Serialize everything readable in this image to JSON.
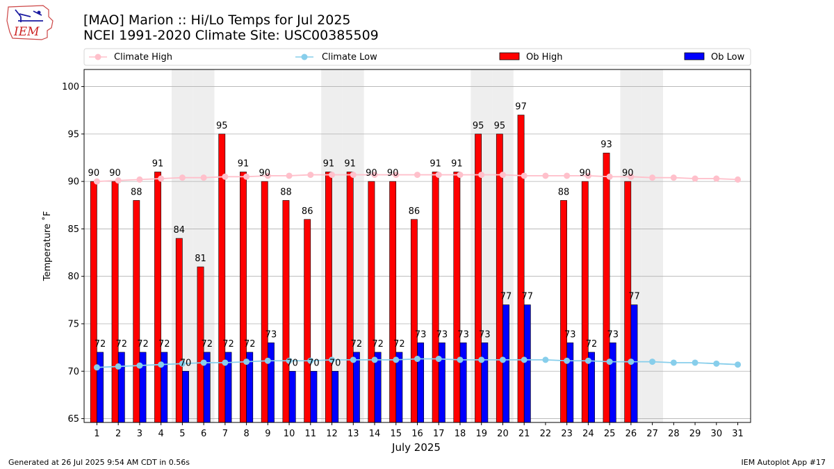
{
  "chart_data": {
    "type": "bar",
    "title": "[MAO] Marion :: Hi/Lo Temps for Jul 2025",
    "subtitle": "NCEI 1991-2020 Climate Site: USC00385509",
    "xlabel": "July 2025",
    "ylabel": "Temperature ˚F",
    "ylim": [
      64.6,
      101.8
    ],
    "yticks": [
      65,
      70,
      75,
      80,
      85,
      90,
      95,
      100
    ],
    "grid": "horizontal",
    "legend_position": "top",
    "categories": [
      "1",
      "2",
      "3",
      "4",
      "5",
      "6",
      "7",
      "8",
      "9",
      "10",
      "11",
      "12",
      "13",
      "14",
      "15",
      "16",
      "17",
      "18",
      "19",
      "20",
      "21",
      "22",
      "23",
      "24",
      "25",
      "26",
      "27",
      "28",
      "29",
      "30",
      "31"
    ],
    "weekend_days": [
      5,
      6,
      12,
      13,
      19,
      20,
      26,
      27
    ],
    "series": [
      {
        "name": "Ob High",
        "type": "bar",
        "color": "#ff0000",
        "values": [
          90,
          90,
          88,
          91,
          84,
          81,
          95,
          91,
          90,
          88,
          86,
          91,
          91,
          90,
          90,
          86,
          91,
          91,
          95,
          95,
          97,
          null,
          88,
          90,
          93,
          90,
          null,
          null,
          null,
          null,
          null
        ]
      },
      {
        "name": "Ob Low",
        "type": "bar",
        "color": "#0000ff",
        "values": [
          72,
          72,
          72,
          72,
          70,
          72,
          72,
          72,
          73,
          70,
          70,
          70,
          72,
          72,
          72,
          73,
          73,
          73,
          73,
          77,
          77,
          null,
          73,
          72,
          73,
          77,
          null,
          null,
          null,
          null,
          null
        ]
      },
      {
        "name": "Climate High",
        "type": "line",
        "color": "#ffc0cb",
        "values": [
          90.0,
          90.1,
          90.2,
          90.3,
          90.4,
          90.4,
          90.5,
          90.5,
          90.6,
          90.6,
          90.7,
          90.7,
          90.7,
          90.7,
          90.7,
          90.7,
          90.7,
          90.7,
          90.7,
          90.7,
          90.6,
          90.6,
          90.6,
          90.6,
          90.5,
          90.5,
          90.4,
          90.4,
          90.3,
          90.3,
          90.2
        ]
      },
      {
        "name": "Climate Low",
        "type": "line",
        "color": "#87ceeb",
        "values": [
          70.4,
          70.5,
          70.6,
          70.7,
          70.8,
          70.9,
          70.9,
          71.0,
          71.1,
          71.1,
          71.1,
          71.2,
          71.2,
          71.2,
          71.2,
          71.3,
          71.3,
          71.2,
          71.2,
          71.2,
          71.2,
          71.2,
          71.1,
          71.1,
          71.0,
          71.0,
          71.0,
          70.9,
          70.9,
          70.8,
          70.7
        ]
      }
    ],
    "high_labels": [
      "90",
      "90",
      "88",
      "91",
      "84",
      "81",
      "95",
      "91",
      "90",
      "88",
      "86",
      "91",
      "91",
      "90",
      "90",
      "86",
      "91",
      "91",
      "95",
      "95",
      "97",
      "",
      "88",
      "90",
      "93",
      "90",
      "",
      "",
      "",
      "",
      ""
    ],
    "low_labels": [
      "72",
      "72",
      "72",
      "72",
      "70",
      "72",
      "72",
      "72",
      "73",
      "70",
      "70",
      "70",
      "72",
      "72",
      "72",
      "73",
      "73",
      "73",
      "73",
      "77",
      "77",
      "",
      "73",
      "72",
      "73",
      "77",
      "",
      "",
      "",
      "",
      ""
    ]
  },
  "legend": {
    "climate_high": "Climate High",
    "climate_low": "Climate Low",
    "ob_high": "Ob High",
    "ob_low": "Ob Low"
  },
  "logo": {
    "text": "IEM"
  },
  "footer": {
    "generated": "Generated at 26 Jul 2025 9:54 AM CDT in 0.56s",
    "app": "IEM Autoplot App #17"
  }
}
